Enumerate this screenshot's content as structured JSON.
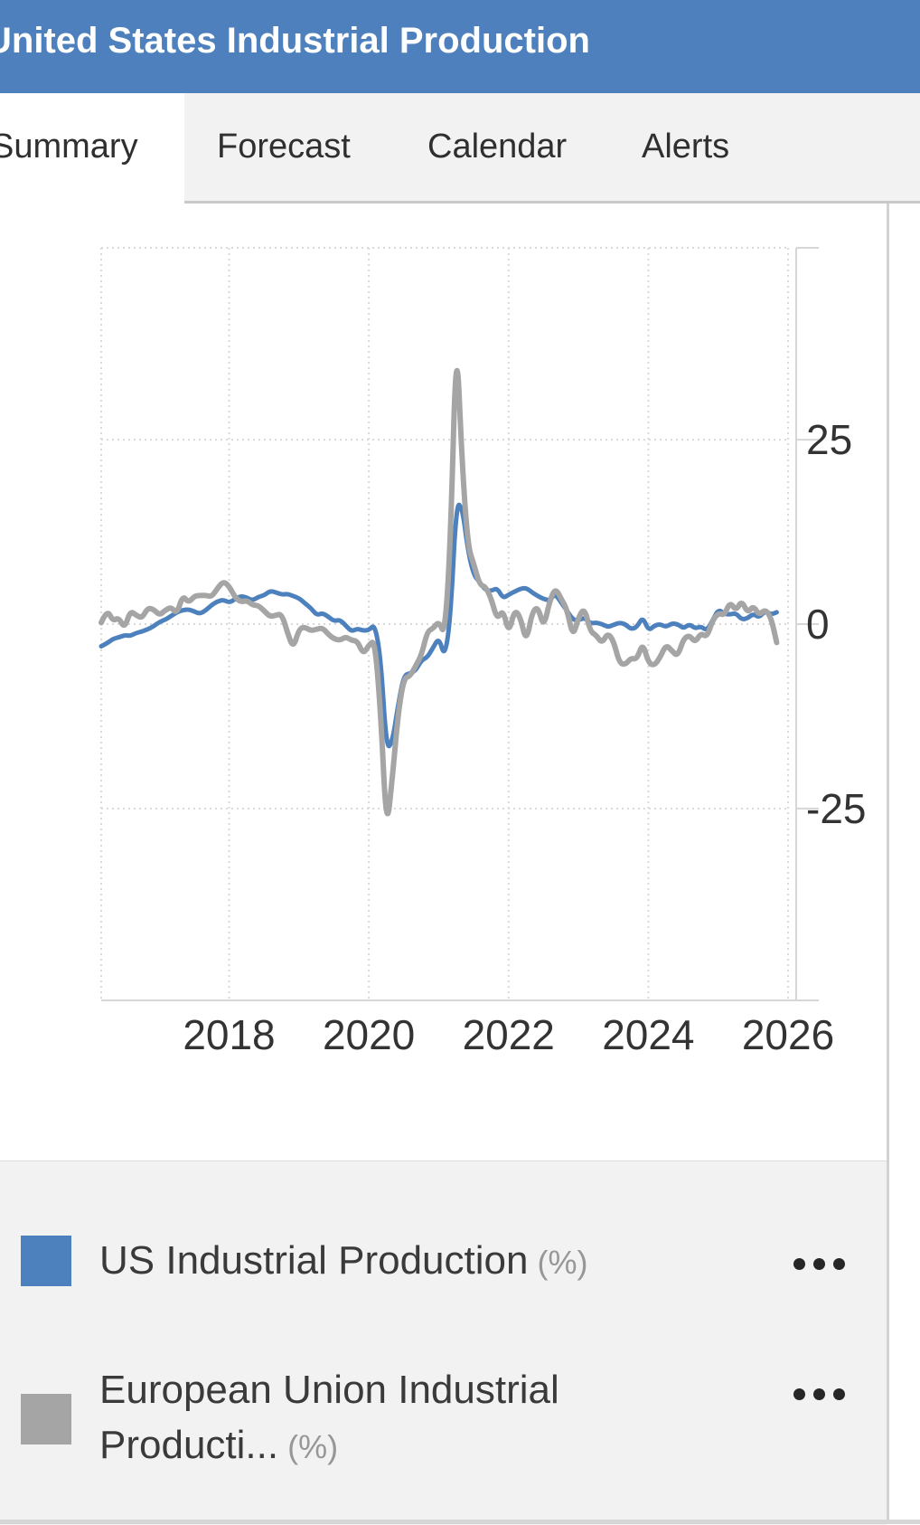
{
  "header": {
    "title": "United States Industrial Production"
  },
  "tabs": {
    "items": [
      {
        "label": "Summary",
        "active": true
      },
      {
        "label": "Forecast",
        "active": false
      },
      {
        "label": "Calendar",
        "active": false
      },
      {
        "label": "Alerts",
        "active": false
      }
    ]
  },
  "chart_data": {
    "type": "line",
    "title": "",
    "xlabel": "",
    "ylabel": "",
    "x_start_year_decimal": 2016.17,
    "cadence": "monthly",
    "xlim": [
      2016.17,
      2026.0
    ],
    "ylim": [
      -51,
      51
    ],
    "x_ticks": [
      2018,
      2020,
      2022,
      2024,
      2026
    ],
    "y_ticks": [
      25,
      0,
      -25
    ],
    "grid": "dotted",
    "legend_position": "bottom",
    "series": [
      {
        "name": "US Industrial Production",
        "unit": "%",
        "color": "#4D81BD",
        "values": [
          -3.0,
          -2.6,
          -2.0,
          -1.8,
          -1.5,
          -1.6,
          -1.2,
          -1.0,
          -0.7,
          -0.3,
          0.3,
          0.6,
          1.1,
          1.6,
          1.9,
          2.0,
          1.7,
          1.4,
          1.9,
          2.6,
          3.1,
          3.3,
          2.9,
          3.4,
          3.8,
          3.6,
          3.2,
          3.7,
          3.9,
          4.5,
          4.3,
          4.0,
          4.1,
          3.8,
          3.5,
          2.8,
          2.2,
          1.2,
          1.5,
          1.0,
          0.4,
          0.6,
          -0.2,
          -1.0,
          -0.6,
          -0.9,
          -0.8,
          0.0,
          -4.6,
          -17.0,
          -16.0,
          -10.9,
          -6.9,
          -6.7,
          -6.3,
          -4.9,
          -4.5,
          -3.2,
          -1.8,
          -4.6,
          1.0,
          16.5,
          15.8,
          9.9,
          6.6,
          5.7,
          4.6,
          4.5,
          4.9,
          3.5,
          4.0,
          4.4,
          4.8,
          4.9,
          4.3,
          3.8,
          3.4,
          3.2,
          4.1,
          2.9,
          1.8,
          0.6,
          0.5,
          0.9,
          0.1,
          0.2,
          0.0,
          -0.4,
          -0.1,
          0.2,
          0.0,
          -0.7,
          -0.4,
          1.0,
          -0.9,
          -0.2,
          0.0,
          -0.4,
          0.1,
          0.0,
          -0.6,
          0.0,
          -0.6,
          -0.3,
          -0.9,
          0.5,
          2.0,
          1.4,
          1.3,
          1.5,
          0.6,
          0.8,
          1.4,
          0.9,
          1.8,
          1.3,
          1.6
        ]
      },
      {
        "name": "European Union Industrial Production",
        "unit": "%",
        "color": "#A5A5A5",
        "values": [
          0.2,
          2.0,
          0.4,
          0.9,
          -0.6,
          1.8,
          1.2,
          0.8,
          2.2,
          2.0,
          1.2,
          1.9,
          2.3,
          1.4,
          3.9,
          2.9,
          3.8,
          3.9,
          3.9,
          3.7,
          4.9,
          5.8,
          5.1,
          3.6,
          3.0,
          3.2,
          2.6,
          2.5,
          1.8,
          1.0,
          1.2,
          1.4,
          -1.2,
          -3.3,
          -0.6,
          -0.4,
          -0.9,
          -0.7,
          -0.5,
          -1.4,
          -2.0,
          -2.2,
          -1.7,
          -2.2,
          -2.3,
          -4.1,
          -2.8,
          -2.2,
          -12.1,
          -28.2,
          -20.9,
          -12.0,
          -7.3,
          -7.1,
          -5.7,
          -4.2,
          -1.0,
          -0.6,
          0.4,
          -1.6,
          11.5,
          40.0,
          21.3,
          10.5,
          8.1,
          5.3,
          5.1,
          3.4,
          0.6,
          2.0,
          -1.3,
          2.0,
          0.9,
          -2.5,
          1.6,
          2.4,
          -0.5,
          3.1,
          4.9,
          3.4,
          2.0,
          -1.8,
          1.0,
          2.2,
          -1.0,
          -1.5,
          -2.6,
          -1.2,
          -2.3,
          -5.3,
          -5.5,
          -4.6,
          -4.8,
          -2.5,
          -5.3,
          -5.6,
          -4.5,
          -2.8,
          -3.6,
          -4.4,
          -2.0,
          -1.5,
          -2.5,
          -1.2,
          -1.8,
          0.5,
          1.5,
          1.2,
          3.0,
          1.8,
          3.2,
          1.5,
          2.5,
          1.2,
          2.0,
          1.0,
          -2.5
        ]
      }
    ]
  },
  "legend": {
    "items": [
      {
        "label": "US Industrial Production",
        "unit": "(%)",
        "color": "#4D81BD",
        "menu_icon": "ellipsis"
      },
      {
        "label": "European Union Industrial Producti...",
        "unit": "(%)",
        "color": "#A5A5A5",
        "menu_icon": "ellipsis"
      }
    ]
  },
  "colors": {
    "header_bg": "#4D80BC",
    "header_text": "#FFFFFF",
    "tabbar_bg": "#F2F2F2",
    "active_tab_bg": "#FFFFFF",
    "grid": "#D9D9D9",
    "axis": "#D6D6D6",
    "axis_text": "#333333",
    "legend_bg": "#F2F2F2",
    "series_us": "#4D81BD",
    "series_eu": "#A5A5A5"
  }
}
